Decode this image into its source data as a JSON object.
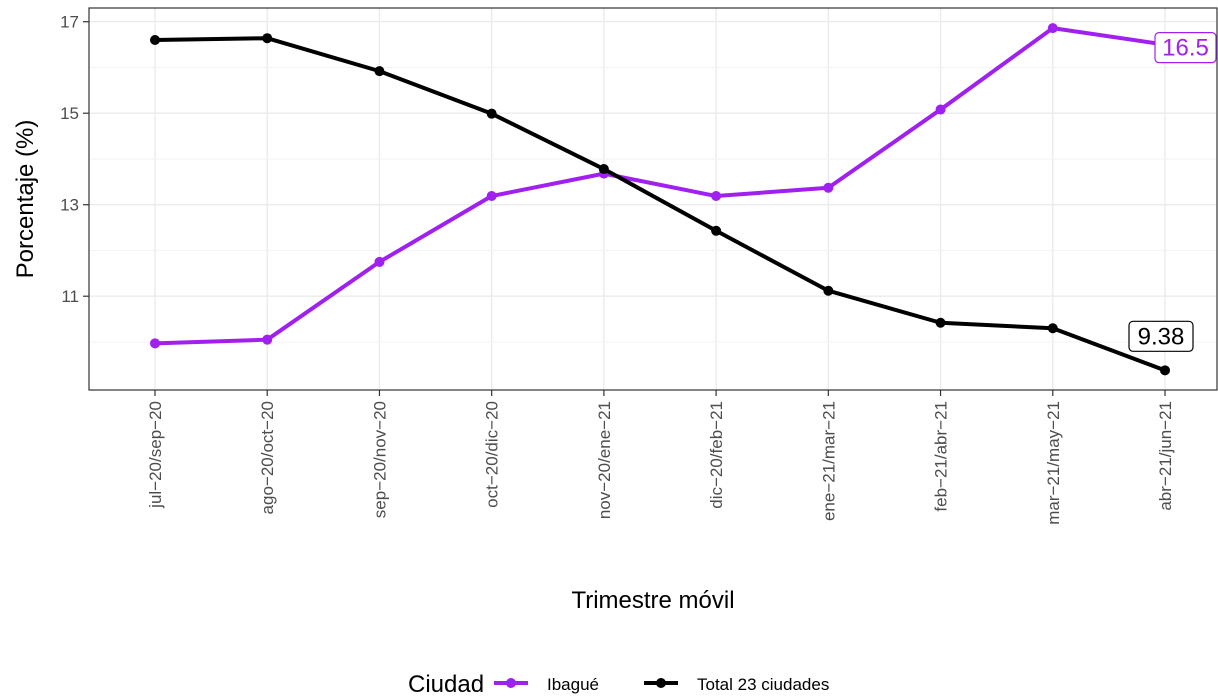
{
  "chart_data": {
    "type": "line",
    "title": "",
    "xlabel": "Trimestre móvil",
    "ylabel": "Porcentaje (%)",
    "categories": [
      "jul−20/sep−20",
      "ago−20/oct−20",
      "sep−20/nov−20",
      "oct−20/dic−20",
      "nov−20/ene−21",
      "dic−20/feb−21",
      "ene−21/mar−21",
      "feb−21/abr−21",
      "mar−21/may−21",
      "abr−21/jun−21"
    ],
    "y_ticks": [
      11,
      13,
      15,
      17
    ],
    "ylim": [
      8.95,
      17.3
    ],
    "grid": true,
    "legend": {
      "title": "Ciudad",
      "position": "bottom"
    },
    "series": [
      {
        "name": "Ibagué",
        "color": "#a020f0",
        "values": [
          9.97,
          10.05,
          11.75,
          13.19,
          13.68,
          13.19,
          13.37,
          15.08,
          16.86,
          16.5
        ],
        "end_label": "16.5"
      },
      {
        "name": "Total 23 ciudades",
        "color": "#000000",
        "values": [
          16.6,
          16.64,
          15.92,
          14.99,
          13.78,
          12.43,
          11.12,
          10.42,
          10.3,
          9.38
        ],
        "end_label": "9.38"
      }
    ]
  }
}
